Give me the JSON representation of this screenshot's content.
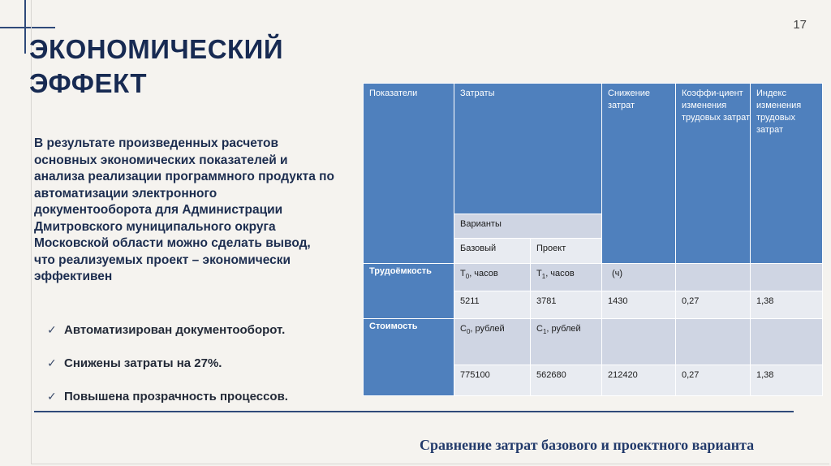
{
  "slide": {
    "page_number": "17",
    "title_lines": [
      "ЭКОНОМИЧЕСКИЙ",
      "ЭФФЕКТ"
    ],
    "intro": "В результате произведенных расчетов основных экономических показателей и анализа реализации программного продукта по автоматизации электронного документооборота для Администрации Дмитровского муниципального округа Московской области можно сделать вывод, что реализуемых проект – экономически эффективен",
    "bullets": [
      "Автоматизирован документооборот.",
      "Снижены затраты на 27%.",
      "Повышена прозрачность процессов."
    ],
    "caption": "Сравнение затрат базового и проектного варианта"
  },
  "table": {
    "headers": {
      "indicators": "Показатели",
      "costs": "Затраты",
      "reduction": "Снижение затрат",
      "coefficient": "Коэффи-циент изменения трудовых затрат",
      "index": "Индекс изменения трудовых затрат"
    },
    "variants": "Варианты",
    "base": "Базовый",
    "project": "Проект",
    "rows": [
      {
        "label": "Трудоёмкость",
        "base_unit": {
          "sym": "Т",
          "sub": "0",
          "rest": ", часов"
        },
        "project_unit": {
          "sym": "Т",
          "sub": "1",
          "rest": ", часов"
        },
        "reduction_unit": "(ч)",
        "base_value": "5211",
        "project_value": "3781",
        "reduction_value": "1430",
        "coefficient": "0,27",
        "index": "1,38"
      },
      {
        "label": "Стоимость",
        "base_unit": {
          "sym": "С",
          "sub": "0",
          "rest": ", рублей"
        },
        "project_unit": {
          "sym": "С",
          "sub": "1",
          "rest": ", рублей"
        },
        "reduction_unit": "",
        "base_value": "775100",
        "project_value": "562680",
        "reduction_value": "212420",
        "coefficient": "0,27",
        "index": "1,38"
      }
    ]
  }
}
